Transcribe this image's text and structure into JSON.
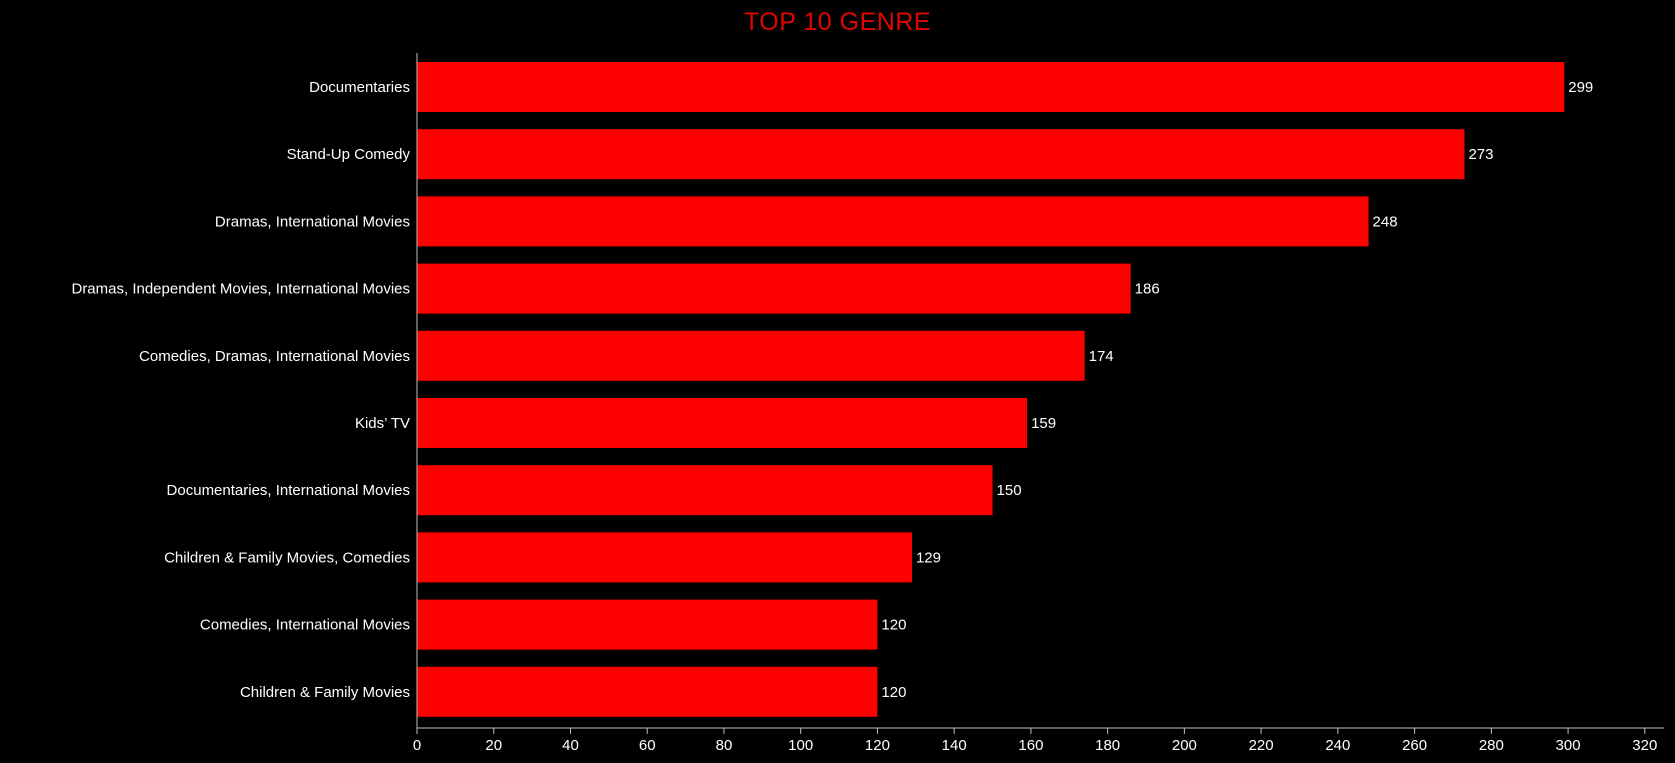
{
  "chart_data": {
    "type": "bar",
    "orientation": "horizontal",
    "title": "TOP 10 GENRE",
    "categories": [
      "Documentaries",
      "Stand-Up Comedy",
      "Dramas, International Movies",
      "Dramas, Independent Movies, International Movies",
      "Comedies, Dramas, International Movies",
      "Kids’ TV",
      "Documentaries, International Movies",
      "Children & Family Movies, Comedies",
      "Comedies, International Movies",
      "Children & Family Movies"
    ],
    "values": [
      299,
      273,
      248,
      186,
      174,
      159,
      150,
      129,
      120,
      120
    ],
    "xlabel": "",
    "ylabel": "",
    "xlim": [
      0,
      325
    ],
    "xticks": [
      0,
      20,
      40,
      60,
      80,
      100,
      120,
      140,
      160,
      180,
      200,
      220,
      240,
      260,
      280,
      300,
      320
    ],
    "grid": false,
    "legend": "none",
    "data_labels": true,
    "colors": {
      "bar": "#ff0000",
      "background": "#000000",
      "title": "#e10600",
      "text": "#ffffff",
      "axis": "#bfbfbf"
    }
  }
}
